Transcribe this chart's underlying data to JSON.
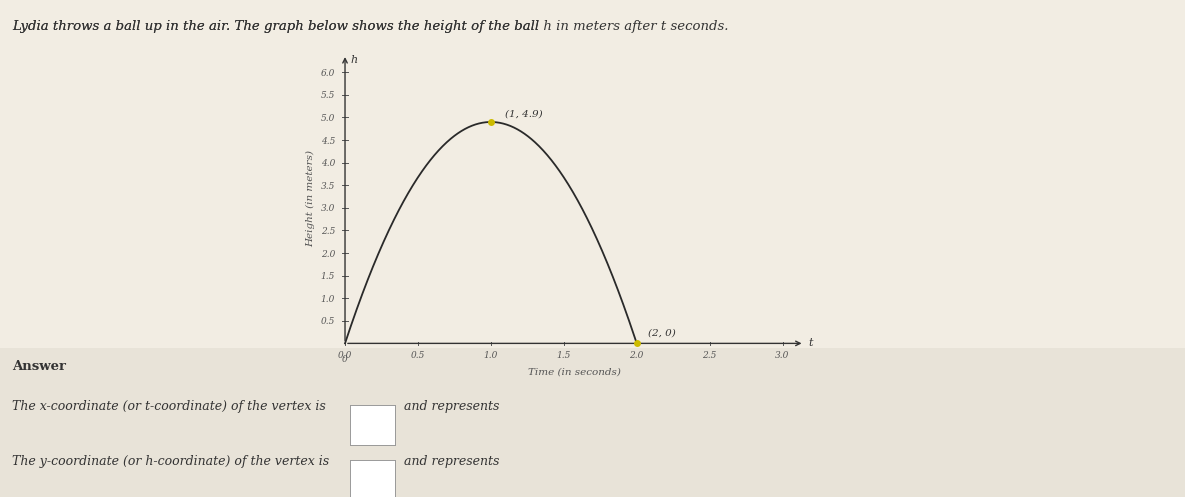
{
  "title_text": "Lydia throws a ball up in the air. The graph below shows the height of the ball ",
  "title_h": "h",
  "title_text2": " in meters after ",
  "title_t": "t",
  "title_text3": " seconds.",
  "xlabel": "Time (in seconds)",
  "ylabel": "Height (in meters)",
  "xaxis_label": "t",
  "yaxis_label": "h",
  "vertex": [
    1,
    4.9
  ],
  "root": [
    2,
    0
  ],
  "xlim": [
    -0.05,
    3.2
  ],
  "ylim": [
    -0.1,
    6.5
  ],
  "xticks": [
    0,
    0.5,
    1,
    1.5,
    2,
    2.5,
    3
  ],
  "yticks": [
    0.5,
    1,
    1.5,
    2,
    2.5,
    3,
    3.5,
    4,
    4.5,
    5,
    5.5,
    6
  ],
  "curve_color": "#2a2a2a",
  "dot_color": "#ccbb00",
  "background_color": "#f2ede3",
  "answer_bg": "#eae5db",
  "answer_line1": "The x-coordinate (or t-coordinate) of the vertex is",
  "answer_line2": "The y-coordinate (or h-coordinate) of the vertex is",
  "answer_suffix": "and represents",
  "answer_label": "Answer"
}
